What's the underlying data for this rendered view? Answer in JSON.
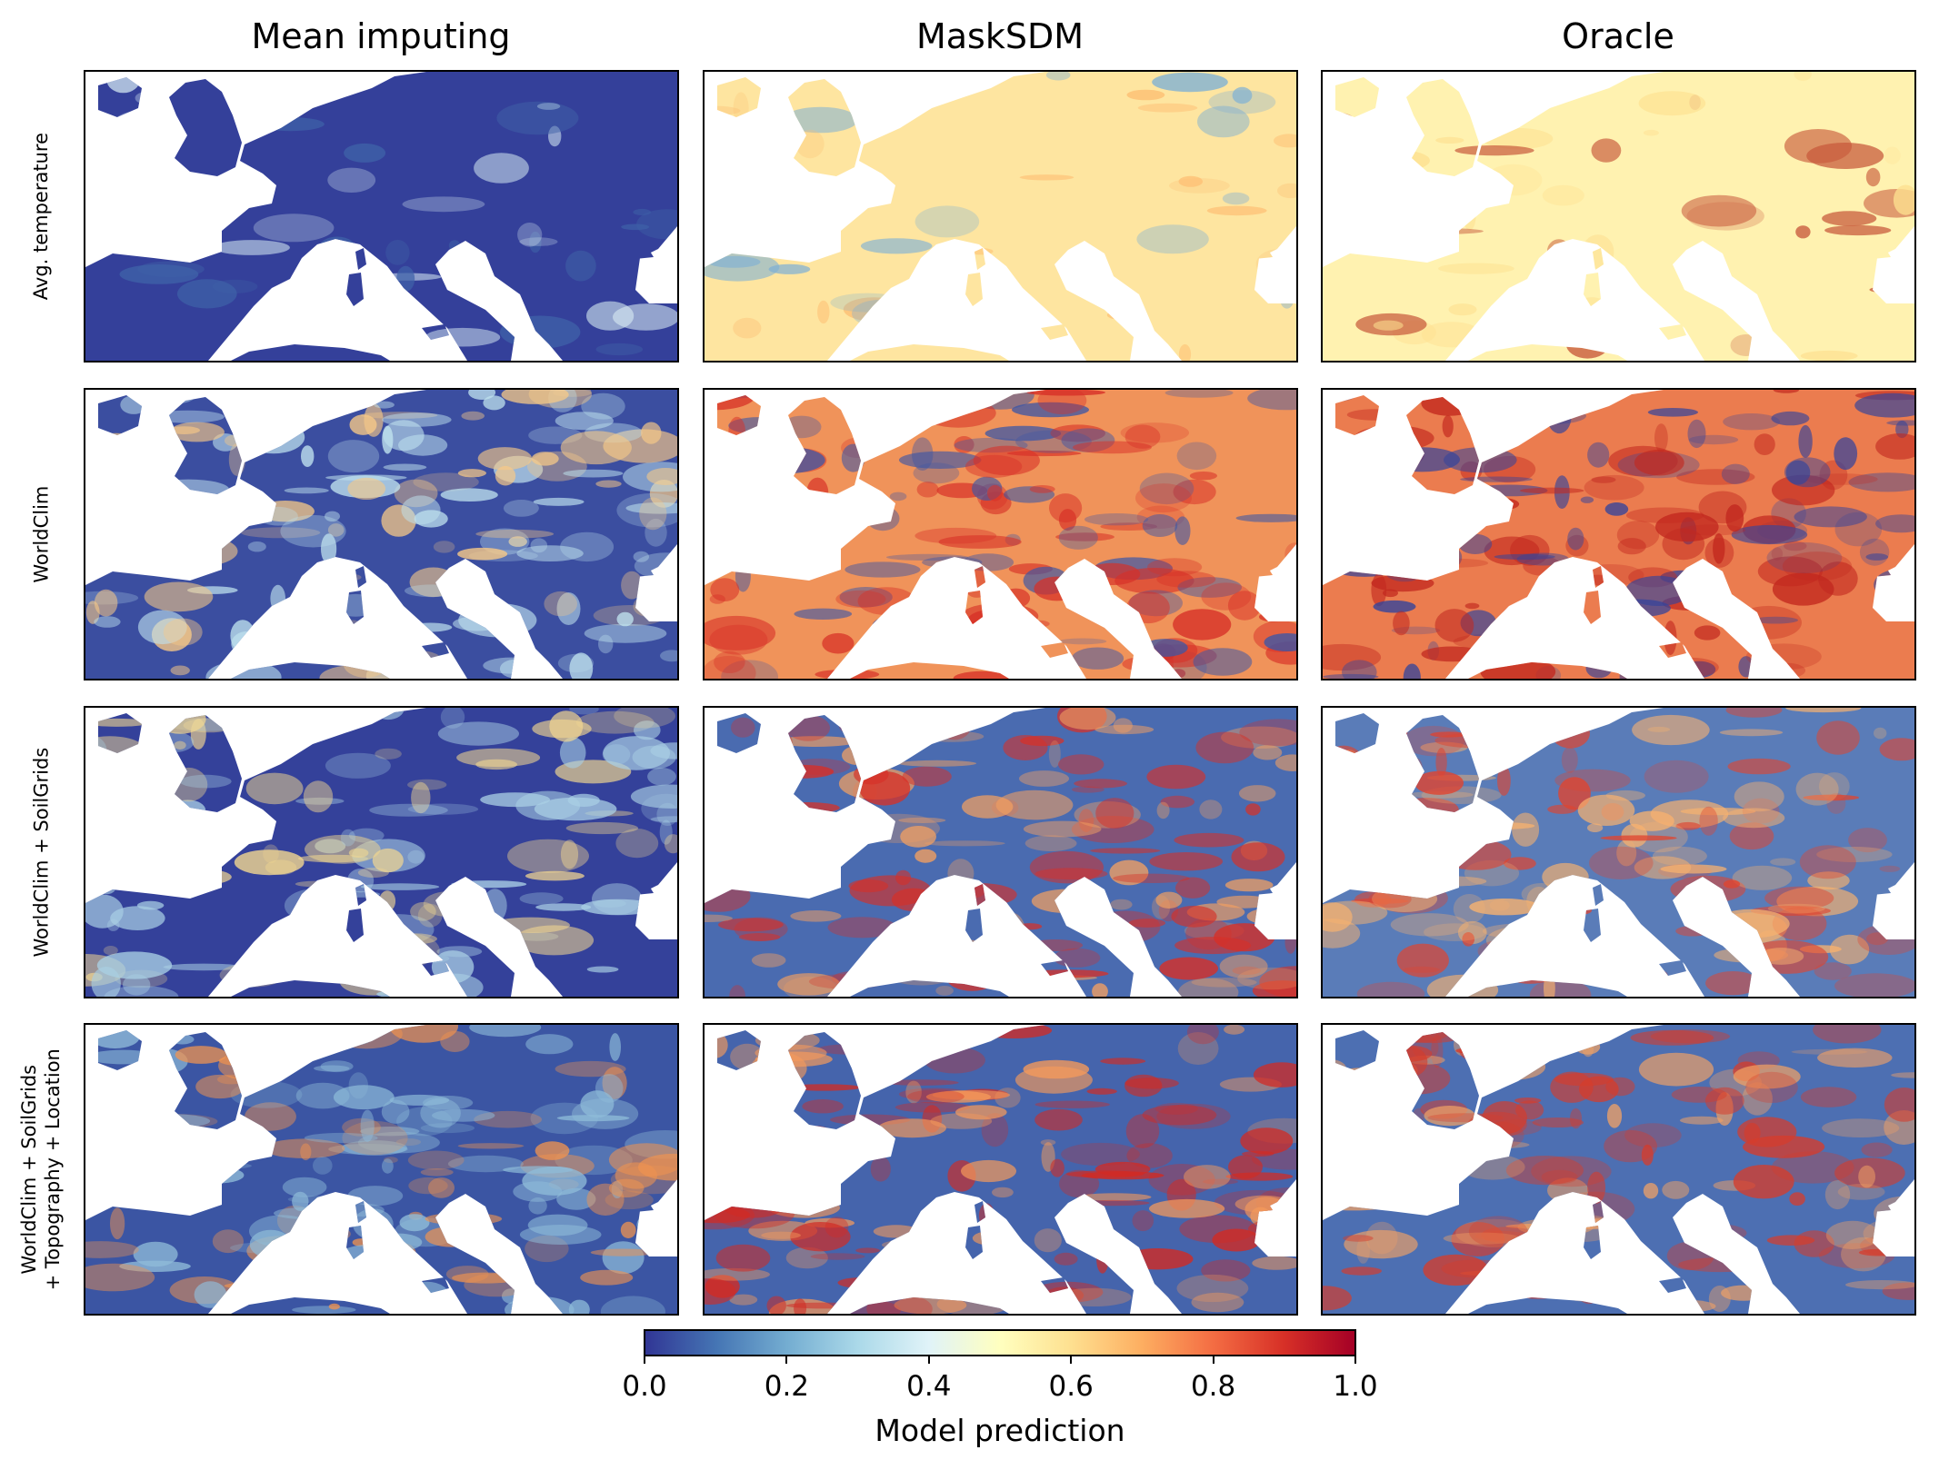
{
  "columns": [
    "Mean imputing",
    "MaskSDM",
    "Oracle"
  ],
  "rows": [
    [
      "Avg. temperature"
    ],
    [
      "WorldClim"
    ],
    [
      "WorldClim + SoilGrids"
    ],
    [
      "WorldClim + SoilGrids",
      "+ Topography + Location"
    ]
  ],
  "colorbar": {
    "label": "Model prediction",
    "ticks": [
      "0.0",
      "0.2",
      "0.4",
      "0.6",
      "0.8",
      "1.0"
    ],
    "tick_values": [
      0.0,
      0.2,
      0.4,
      0.6,
      0.8,
      1.0
    ],
    "range": [
      0.0,
      1.0
    ],
    "colormap": "RdYlBu_r",
    "colors": [
      "#313695",
      "#4575b4",
      "#74add1",
      "#abd9e9",
      "#e0f3f8",
      "#ffffbf",
      "#fee090",
      "#fdae61",
      "#f46d43",
      "#d73027",
      "#a50026"
    ]
  },
  "map_colors": {
    "background": "#ffffff",
    "panels": [
      [
        {
          "base": "#34409a",
          "accent": "#dbeff5",
          "hot": "#3f62a8"
        },
        {
          "base": "#fee5a0",
          "accent": "#fdbf73",
          "hot": "#7fb0d4"
        },
        {
          "base": "#fff2b0",
          "accent": "#fee090",
          "hot": "#c85a3c"
        }
      ],
      [
        {
          "base": "#3b4ea0",
          "accent": "#bfe2ee",
          "hot": "#f7c987"
        },
        {
          "base": "#f0935a",
          "accent": "#d73027",
          "hot": "#3b56a6"
        },
        {
          "base": "#eb7c4f",
          "accent": "#c2281f",
          "hot": "#34449b"
        }
      ],
      [
        {
          "base": "#34419a",
          "accent": "#a9cfe4",
          "hot": "#f2d790"
        },
        {
          "base": "#4a6bb0",
          "accent": "#d73027",
          "hot": "#f3a061"
        },
        {
          "base": "#5a7cb8",
          "accent": "#e0442f",
          "hot": "#f8b26f"
        }
      ],
      [
        {
          "base": "#3b55a3",
          "accent": "#8fbcd9",
          "hot": "#f0934f"
        },
        {
          "base": "#4564ac",
          "accent": "#d12b24",
          "hot": "#f59a5b"
        },
        {
          "base": "#4d6fb2",
          "accent": "#d63c2b",
          "hot": "#f3a264"
        }
      ]
    ]
  }
}
